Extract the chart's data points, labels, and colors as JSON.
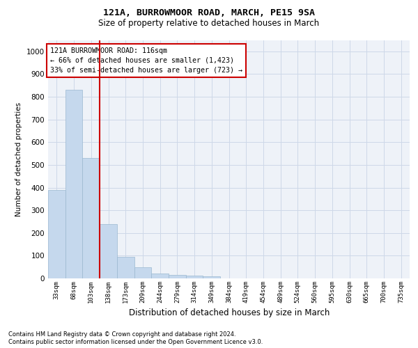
{
  "title1": "121A, BURROWMOOR ROAD, MARCH, PE15 9SA",
  "title2": "Size of property relative to detached houses in March",
  "xlabel": "Distribution of detached houses by size in March",
  "ylabel": "Number of detached properties",
  "categories": [
    "33sqm",
    "68sqm",
    "103sqm",
    "138sqm",
    "173sqm",
    "209sqm",
    "244sqm",
    "279sqm",
    "314sqm",
    "349sqm",
    "384sqm",
    "419sqm",
    "454sqm",
    "489sqm",
    "524sqm",
    "560sqm",
    "595sqm",
    "630sqm",
    "665sqm",
    "700sqm",
    "735sqm"
  ],
  "values": [
    390,
    830,
    530,
    240,
    95,
    50,
    20,
    16,
    12,
    8,
    0,
    0,
    0,
    0,
    0,
    0,
    0,
    0,
    0,
    0,
    0
  ],
  "bar_color": "#c5d8ed",
  "bar_edge_color": "#9ab8d0",
  "vline_x": 2.5,
  "vline_color": "#cc0000",
  "annotation_title": "121A BURROWMOOR ROAD: 116sqm",
  "annotation_line1": "← 66% of detached houses are smaller (1,423)",
  "annotation_line2": "33% of semi-detached houses are larger (723) →",
  "annotation_box_color": "#ffffff",
  "annotation_box_edge": "#cc0000",
  "ylim": [
    0,
    1050
  ],
  "yticks": [
    0,
    100,
    200,
    300,
    400,
    500,
    600,
    700,
    800,
    900,
    1000
  ],
  "footnote1": "Contains HM Land Registry data © Crown copyright and database right 2024.",
  "footnote2": "Contains public sector information licensed under the Open Government Licence v3.0.",
  "grid_color": "#cdd8e8",
  "face_color": "#eef2f8"
}
